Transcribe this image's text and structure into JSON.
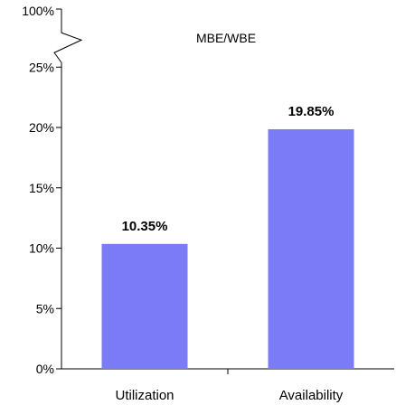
{
  "chart_data": {
    "type": "bar",
    "title": "MBE/WBE",
    "categories": [
      "Utilization",
      "Availability"
    ],
    "values": [
      10.35,
      19.85
    ],
    "data_labels": [
      "10.35%",
      "19.85%"
    ],
    "ylim": [
      0,
      25
    ],
    "y_ticks": [
      0,
      5,
      10,
      15,
      20,
      25
    ],
    "y_tick_labels": [
      "0%",
      "5%",
      "10%",
      "15%",
      "20%",
      "25%"
    ],
    "y_axis_break": true,
    "y_break_top_label": "100%",
    "xlabel": "",
    "ylabel": "",
    "grid": false,
    "bar_color": "#7B7BF7"
  }
}
